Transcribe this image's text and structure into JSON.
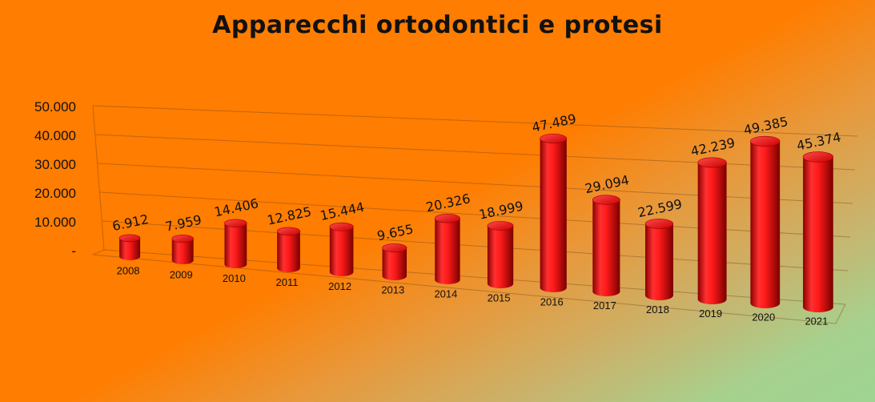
{
  "title": "Apparecchi ortodontici e protesi",
  "chart_data": {
    "type": "bar",
    "title": "Apparecchi ortodontici e protesi",
    "categories": [
      "2008",
      "2009",
      "2010",
      "2011",
      "2012",
      "2013",
      "2014",
      "2015",
      "2016",
      "2017",
      "2018",
      "2019",
      "2020",
      "2021"
    ],
    "values": [
      6912,
      7959,
      14406,
      12825,
      15444,
      9655,
      20326,
      18999,
      47489,
      29094,
      22599,
      42239,
      49385,
      45374
    ],
    "value_labels": [
      "6.912",
      "7.959",
      "14.406",
      "12.825",
      "15.444",
      "9.655",
      "20.326",
      "18.999",
      "47.489",
      "29.094",
      "22.599",
      "42.239",
      "49.385",
      "45.374"
    ],
    "ytick_labels": [
      "-",
      "10.000",
      "20.000",
      "30.000",
      "40.000",
      "50.000"
    ],
    "ylim": [
      0,
      50000
    ],
    "xlabel": "",
    "ylabel": "",
    "grid": true,
    "style": "3d-cylinder",
    "bar_color": "#e00000"
  }
}
